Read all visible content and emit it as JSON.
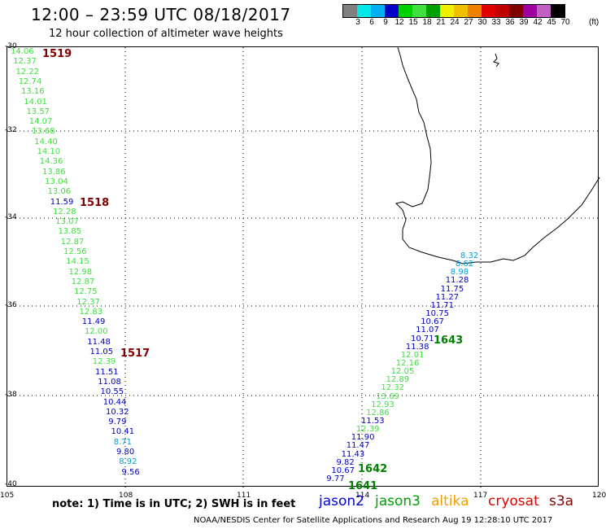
{
  "title": "12:00 – 23:59 UTC 08/18/2017",
  "subtitle": "12 hour collection of altimeter wave heights",
  "colorbar": {
    "colors": [
      "#808080",
      "#00e8e8",
      "#00b0f0",
      "#0000c8",
      "#00d000",
      "#40e040",
      "#00a000",
      "#f0f000",
      "#f0c000",
      "#f08000",
      "#e00000",
      "#c00000",
      "#800000",
      "#a000a0",
      "#c060c0",
      "#000000"
    ],
    "labels": [
      "3",
      "6",
      "9",
      "12",
      "15",
      "18",
      "21",
      "24",
      "27",
      "30",
      "33",
      "36",
      "39",
      "42",
      "45",
      "70"
    ],
    "unit": "(ft)"
  },
  "lat_labels": [
    "-30",
    "-32",
    "-34",
    "-36",
    "-38",
    "-40"
  ],
  "lon_labels": [
    "105",
    "108",
    "111",
    "114",
    "117",
    "120"
  ],
  "note": "note: 1) Time is in UTC; 2) SWH is in feet",
  "legend": {
    "jason2": "jason2",
    "jason3": "jason3",
    "altika": "altika",
    "cryosat": "cryosat",
    "s3a": "s3a"
  },
  "credit": "NOAA/NESDIS Center for Satellite Applications and Research   Aug 19 12:28:10 UTC 2017",
  "track_times": [
    "1519",
    "1518",
    "1517",
    "1643",
    "1642",
    "1641"
  ],
  "track_left": [
    "14.06",
    "12.37",
    "12.22",
    "12.74",
    "13.16",
    "14.01",
    "13.57",
    "14.07",
    "13.68",
    "14.40",
    "14.10",
    "14.36",
    "13.86",
    "13.04",
    "13.06",
    "11.59",
    "12.28",
    "13.07",
    "13.85",
    "12.87",
    "12.56",
    "14.15",
    "12.98",
    "12.87",
    "12.75",
    "12.37",
    "12.83",
    "11.49",
    "12.00",
    "11.48",
    "11.05",
    "12.39",
    "11.51",
    "11.08",
    "10.55",
    "10.44",
    "10.32",
    "9.79",
    "10.41",
    "8.71",
    "9.80",
    "8.92",
    "9.56"
  ],
  "track_right": [
    "8.32",
    "8.62",
    "8.98",
    "11.28",
    "11.75",
    "11.27",
    "11.71",
    "10.75",
    "10.67",
    "11.07",
    "10.71",
    "11.38",
    "12.01",
    "12.16",
    "12.05",
    "12.89",
    "12.32",
    "13.69",
    "12.93",
    "12.86",
    "11.53",
    "12.39",
    "11.90",
    "11.47",
    "11.43",
    "9.82",
    "10.67",
    "9.77"
  ]
}
